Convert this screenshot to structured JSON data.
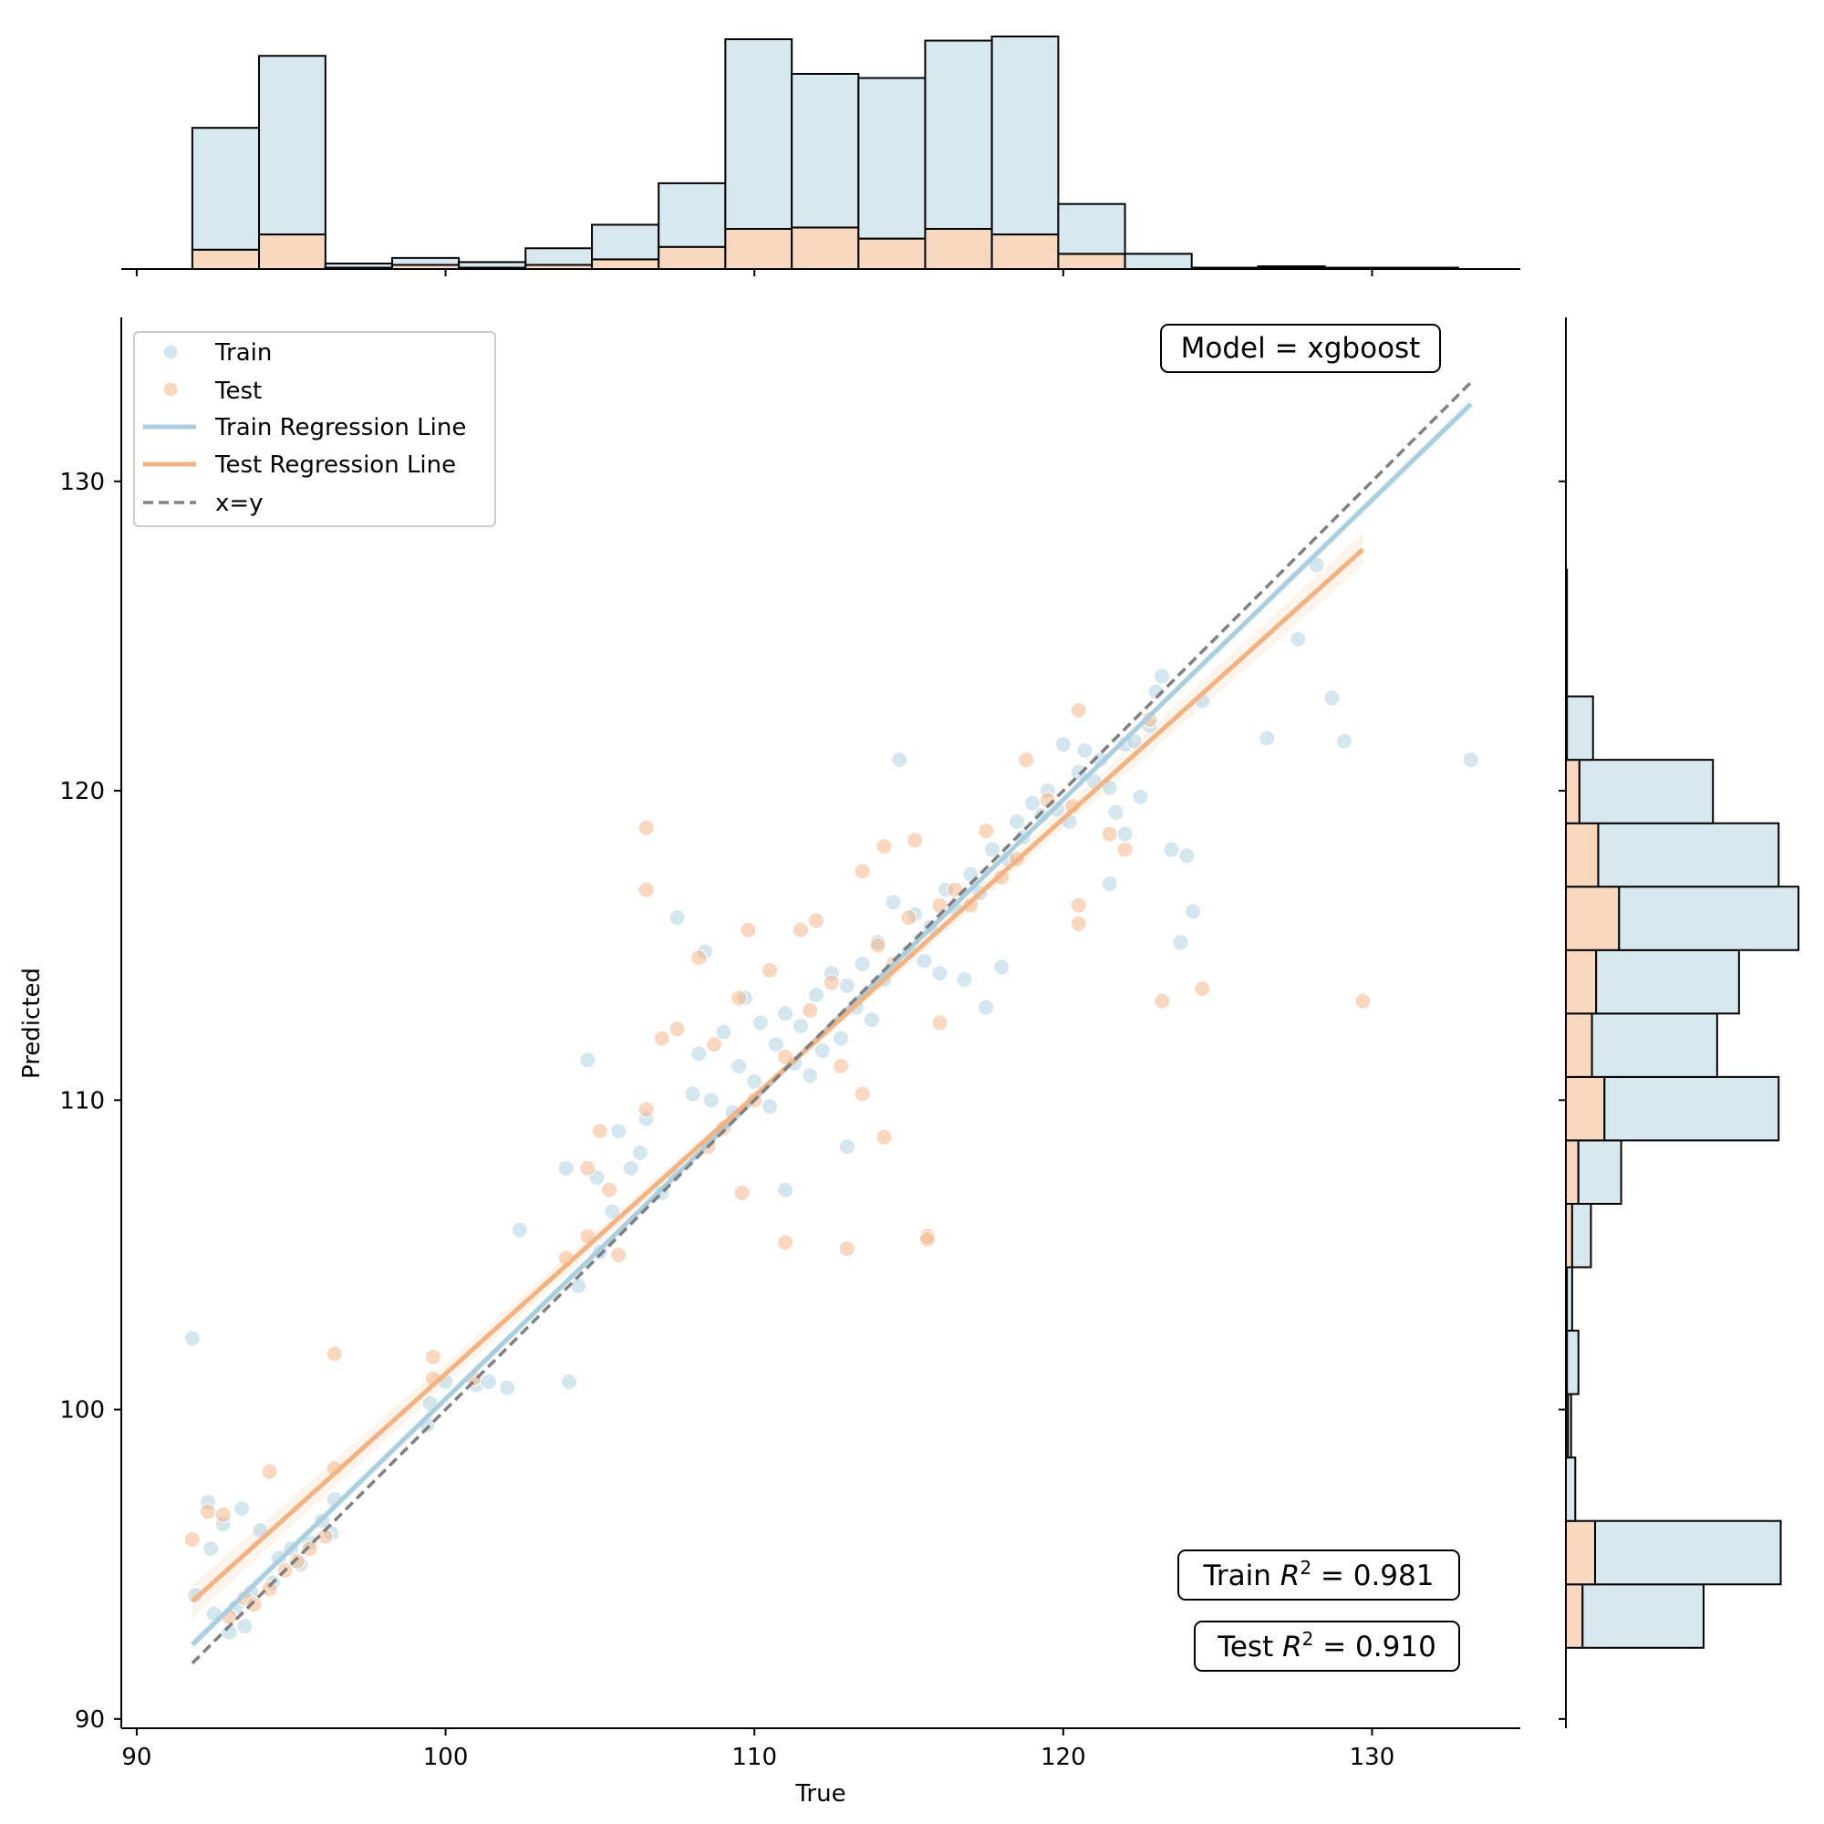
{
  "chart_data": {
    "type": "scatter",
    "title": "",
    "xlabel": "True",
    "ylabel": "Predicted",
    "xlim": [
      89.5,
      134.8
    ],
    "ylim": [
      89.7,
      135.3
    ],
    "x_ticks": [
      90,
      100,
      110,
      120,
      130
    ],
    "y_ticks": [
      90,
      100,
      110,
      120,
      130
    ],
    "model_label": "Model = xgboost",
    "train_r2_prefix": "Train ",
    "train_r2_value": " = 0.981",
    "test_r2_prefix": "Test ",
    "test_r2_value": " = 0.910",
    "r2_symbol": "R",
    "r2_superscript": "2",
    "legend": {
      "placement": "top-left",
      "entries": [
        "Train",
        "Test",
        "Train Regression Line",
        "Test Regression Line",
        "x=y"
      ]
    },
    "colors": {
      "train": "#a9cfdf",
      "test": "#f3b27f",
      "train_hist": "#d7e8ef",
      "test_hist": "#f8d9c0",
      "identity": "#808080"
    },
    "regression_lines": {
      "train": {
        "x": [
          91.8,
          133.2
        ],
        "y": [
          92.4,
          132.5
        ]
      },
      "test": {
        "x": [
          91.8,
          129.7
        ],
        "y": [
          93.8,
          127.8
        ]
      },
      "identity": {
        "x": [
          91.8,
          133.2
        ],
        "y": [
          91.8,
          133.2
        ]
      }
    },
    "series": [
      {
        "name": "Train",
        "points": [
          [
            91.8,
            102.3
          ],
          [
            91.9,
            94.0
          ],
          [
            92.3,
            97.0
          ],
          [
            92.4,
            95.5
          ],
          [
            92.5,
            93.4
          ],
          [
            92.8,
            96.3
          ],
          [
            93.0,
            92.8
          ],
          [
            93.2,
            93.6
          ],
          [
            93.4,
            96.8
          ],
          [
            93.5,
            93.0
          ],
          [
            93.7,
            94.1
          ],
          [
            94.0,
            96.1
          ],
          [
            94.4,
            94.4
          ],
          [
            94.6,
            95.2
          ],
          [
            95.0,
            95.5
          ],
          [
            95.3,
            95.0
          ],
          [
            95.6,
            95.7
          ],
          [
            96.0,
            96.4
          ],
          [
            96.3,
            96.0
          ],
          [
            96.4,
            97.1
          ],
          [
            99.5,
            100.2
          ],
          [
            99.4,
            99.5
          ],
          [
            100.0,
            100.9
          ],
          [
            101.0,
            100.8
          ],
          [
            101.4,
            100.9
          ],
          [
            102.0,
            100.7
          ],
          [
            102.4,
            105.8
          ],
          [
            103.9,
            107.8
          ],
          [
            104.0,
            100.9
          ],
          [
            104.3,
            104.0
          ],
          [
            104.6,
            111.3
          ],
          [
            104.9,
            107.5
          ],
          [
            105.0,
            105.1
          ],
          [
            105.4,
            106.4
          ],
          [
            105.6,
            109.0
          ],
          [
            106.0,
            107.8
          ],
          [
            106.3,
            108.3
          ],
          [
            106.5,
            109.4
          ],
          [
            107.0,
            107.0
          ],
          [
            107.4,
            107.6
          ],
          [
            107.5,
            115.9
          ],
          [
            108.0,
            110.2
          ],
          [
            108.2,
            111.5
          ],
          [
            108.4,
            114.8
          ],
          [
            108.6,
            110.0
          ],
          [
            109.0,
            112.2
          ],
          [
            109.3,
            109.6
          ],
          [
            109.5,
            111.1
          ],
          [
            109.7,
            113.3
          ],
          [
            110.0,
            110.6
          ],
          [
            110.2,
            112.5
          ],
          [
            110.5,
            109.8
          ],
          [
            110.7,
            111.8
          ],
          [
            111.0,
            112.8
          ],
          [
            111.0,
            107.1
          ],
          [
            111.3,
            111.2
          ],
          [
            111.5,
            112.4
          ],
          [
            111.8,
            110.8
          ],
          [
            112.0,
            113.4
          ],
          [
            112.2,
            111.6
          ],
          [
            112.5,
            114.1
          ],
          [
            112.8,
            112.0
          ],
          [
            113.0,
            108.5
          ],
          [
            113.0,
            113.7
          ],
          [
            113.3,
            113.0
          ],
          [
            113.5,
            114.4
          ],
          [
            113.8,
            112.6
          ],
          [
            114.0,
            115.1
          ],
          [
            114.2,
            113.9
          ],
          [
            114.5,
            116.4
          ],
          [
            114.7,
            121.0
          ],
          [
            115.0,
            114.8
          ],
          [
            115.2,
            116.0
          ],
          [
            115.5,
            114.5
          ],
          [
            115.7,
            115.6
          ],
          [
            116.0,
            114.1
          ],
          [
            116.2,
            116.8
          ],
          [
            116.5,
            116.2
          ],
          [
            116.8,
            113.9
          ],
          [
            117.0,
            117.3
          ],
          [
            117.3,
            116.7
          ],
          [
            117.5,
            113.0
          ],
          [
            117.7,
            118.1
          ],
          [
            118.0,
            114.3
          ],
          [
            118.2,
            117.8
          ],
          [
            118.5,
            119.0
          ],
          [
            118.7,
            118.5
          ],
          [
            119.0,
            119.6
          ],
          [
            119.3,
            119.2
          ],
          [
            119.5,
            120.0
          ],
          [
            119.8,
            119.4
          ],
          [
            120.0,
            121.5
          ],
          [
            120.2,
            119.0
          ],
          [
            120.5,
            120.6
          ],
          [
            120.7,
            121.3
          ],
          [
            121.0,
            120.3
          ],
          [
            121.2,
            121.0
          ],
          [
            121.5,
            120.1
          ],
          [
            121.5,
            117.0
          ],
          [
            121.7,
            119.3
          ],
          [
            122.0,
            121.5
          ],
          [
            122.0,
            118.6
          ],
          [
            122.3,
            121.6
          ],
          [
            122.5,
            119.8
          ],
          [
            122.8,
            122.1
          ],
          [
            123.0,
            123.2
          ],
          [
            123.2,
            123.7
          ],
          [
            123.5,
            118.1
          ],
          [
            123.8,
            115.1
          ],
          [
            124.0,
            117.9
          ],
          [
            124.2,
            116.1
          ],
          [
            124.5,
            122.9
          ],
          [
            126.6,
            121.7
          ],
          [
            127.6,
            124.9
          ],
          [
            128.2,
            127.3
          ],
          [
            128.7,
            123.0
          ],
          [
            129.1,
            121.6
          ],
          [
            133.2,
            121.0
          ]
        ]
      },
      {
        "name": "Test",
        "points": [
          [
            91.8,
            95.8
          ],
          [
            92.3,
            96.7
          ],
          [
            92.8,
            96.6
          ],
          [
            93.0,
            93.3
          ],
          [
            93.5,
            93.9
          ],
          [
            93.8,
            93.7
          ],
          [
            94.3,
            94.2
          ],
          [
            94.3,
            98.0
          ],
          [
            94.8,
            94.8
          ],
          [
            95.2,
            95.1
          ],
          [
            95.6,
            95.5
          ],
          [
            96.1,
            95.9
          ],
          [
            96.4,
            98.1
          ],
          [
            96.4,
            101.8
          ],
          [
            99.6,
            101.7
          ],
          [
            99.6,
            101.0
          ],
          [
            100.9,
            101.0
          ],
          [
            103.9,
            104.9
          ],
          [
            104.6,
            107.8
          ],
          [
            104.6,
            105.6
          ],
          [
            105.0,
            109.0
          ],
          [
            105.3,
            107.1
          ],
          [
            105.6,
            105.0
          ],
          [
            106.5,
            118.8
          ],
          [
            106.5,
            116.8
          ],
          [
            106.5,
            109.7
          ],
          [
            107.0,
            112.0
          ],
          [
            107.5,
            112.3
          ],
          [
            108.2,
            114.6
          ],
          [
            108.5,
            108.5
          ],
          [
            108.7,
            111.8
          ],
          [
            109.0,
            109.1
          ],
          [
            109.5,
            113.3
          ],
          [
            109.6,
            107.0
          ],
          [
            109.8,
            115.5
          ],
          [
            110.0,
            110.0
          ],
          [
            110.5,
            114.2
          ],
          [
            111.0,
            111.4
          ],
          [
            111.0,
            105.4
          ],
          [
            111.5,
            115.5
          ],
          [
            111.8,
            112.9
          ],
          [
            112.0,
            115.8
          ],
          [
            112.5,
            113.8
          ],
          [
            112.8,
            111.1
          ],
          [
            113.0,
            105.2
          ],
          [
            113.5,
            110.2
          ],
          [
            113.5,
            117.4
          ],
          [
            114.0,
            115.0
          ],
          [
            114.2,
            118.2
          ],
          [
            114.2,
            108.8
          ],
          [
            114.5,
            114.4
          ],
          [
            115.0,
            115.9
          ],
          [
            115.2,
            118.4
          ],
          [
            115.6,
            105.6
          ],
          [
            115.6,
            105.5
          ],
          [
            116.0,
            112.5
          ],
          [
            116.0,
            116.3
          ],
          [
            116.5,
            116.8
          ],
          [
            117.0,
            116.3
          ],
          [
            117.5,
            118.7
          ],
          [
            118.0,
            117.2
          ],
          [
            118.5,
            117.8
          ],
          [
            118.8,
            121.0
          ],
          [
            119.5,
            119.7
          ],
          [
            120.3,
            119.5
          ],
          [
            120.5,
            116.3
          ],
          [
            120.5,
            115.7
          ],
          [
            120.5,
            122.6
          ],
          [
            121.5,
            118.6
          ],
          [
            122.0,
            118.1
          ],
          [
            122.8,
            122.3
          ],
          [
            123.2,
            113.2
          ],
          [
            124.5,
            113.6
          ],
          [
            129.7,
            113.2
          ]
        ]
      }
    ],
    "top_histogram": {
      "orientation": "vertical",
      "bin_edges": [
        91.8,
        93.96,
        96.11,
        98.27,
        100.43,
        102.59,
        104.74,
        106.9,
        109.06,
        111.21,
        113.37,
        115.53,
        117.69,
        119.84,
        122.0,
        124.16,
        126.31,
        128.47,
        130.63,
        132.79
      ],
      "train_counts": [
        88,
        129,
        3,
        5,
        4,
        12,
        25,
        46,
        137,
        111,
        116,
        136,
        143,
        36,
        11,
        1,
        1,
        1,
        1
      ],
      "test_counts": [
        14,
        25,
        1,
        3,
        1,
        3,
        7,
        16,
        29,
        30,
        22,
        29,
        25,
        11,
        0,
        0,
        1,
        0,
        0
      ]
    },
    "right_histogram": {
      "orientation": "horizontal",
      "bin_edges": [
        92.3,
        94.35,
        96.4,
        98.45,
        100.5,
        102.55,
        104.6,
        106.65,
        108.7,
        110.75,
        112.8,
        114.85,
        116.9,
        118.95,
        121.0,
        123.05,
        125.1,
        127.15,
        129.2
      ],
      "train_counts": [
        116,
        178,
        9,
        3,
        11,
        5,
        18,
        41,
        167,
        120,
        137,
        172,
        173,
        128,
        25,
        1,
        1,
        0
      ],
      "test_counts": [
        16,
        28,
        0,
        2,
        1,
        1,
        6,
        12,
        37,
        25,
        29,
        51,
        31,
        13,
        1,
        0,
        0,
        0
      ]
    }
  }
}
